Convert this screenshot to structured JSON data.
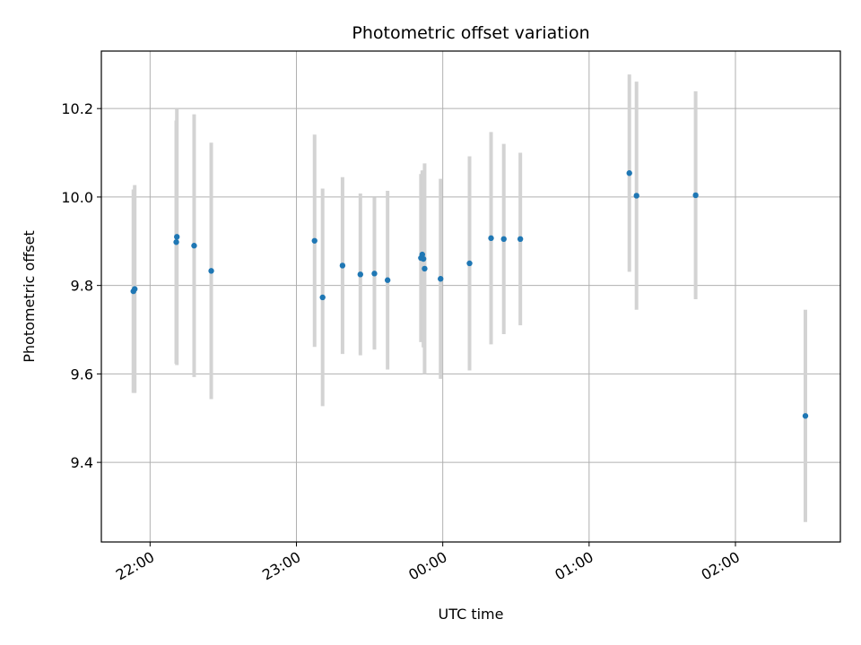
{
  "chart_data": {
    "type": "scatter",
    "title": "Photometric offset variation",
    "xlabel": "UTC time",
    "ylabel": "Photometric offset",
    "x_unit": "hours UTC (values past 24 are after midnight)",
    "xlim": [
      21.667,
      26.717
    ],
    "ylim": [
      9.22,
      10.33
    ],
    "xticks": [
      {
        "value": 22.0,
        "label": "22:00"
      },
      {
        "value": 23.0,
        "label": "23:00"
      },
      {
        "value": 24.0,
        "label": "00:00"
      },
      {
        "value": 25.0,
        "label": "01:00"
      },
      {
        "value": 26.0,
        "label": "02:00"
      }
    ],
    "yticks": [
      {
        "value": 9.4,
        "label": "9.4"
      },
      {
        "value": 9.6,
        "label": "9.6"
      },
      {
        "value": 9.8,
        "label": "9.8"
      },
      {
        "value": 10.0,
        "label": "10.0"
      },
      {
        "value": 10.2,
        "label": "10.2"
      }
    ],
    "grid": true,
    "marker_color": "#1f77b4",
    "errorbar_color": "#d3d3d3",
    "points": [
      {
        "x": 21.886,
        "y": 9.787,
        "err": 0.23
      },
      {
        "x": 21.895,
        "y": 9.792,
        "err": 0.235
      },
      {
        "x": 22.179,
        "y": 9.898,
        "err": 0.275
      },
      {
        "x": 22.183,
        "y": 9.91,
        "err": 0.29
      },
      {
        "x": 22.301,
        "y": 9.89,
        "err": 0.297
      },
      {
        "x": 22.418,
        "y": 9.833,
        "err": 0.29
      },
      {
        "x": 23.124,
        "y": 9.901,
        "err": 0.24
      },
      {
        "x": 23.179,
        "y": 9.773,
        "err": 0.246
      },
      {
        "x": 23.315,
        "y": 9.845,
        "err": 0.2
      },
      {
        "x": 23.437,
        "y": 9.825,
        "err": 0.183
      },
      {
        "x": 23.533,
        "y": 9.827,
        "err": 0.172
      },
      {
        "x": 23.623,
        "y": 9.812,
        "err": 0.202
      },
      {
        "x": 23.851,
        "y": 9.862,
        "err": 0.19
      },
      {
        "x": 23.86,
        "y": 9.87,
        "err": 0.19
      },
      {
        "x": 23.868,
        "y": 9.86,
        "err": 0.2
      },
      {
        "x": 23.876,
        "y": 9.838,
        "err": 0.238
      },
      {
        "x": 23.985,
        "y": 9.815,
        "err": 0.226
      },
      {
        "x": 24.183,
        "y": 9.85,
        "err": 0.242
      },
      {
        "x": 24.33,
        "y": 9.907,
        "err": 0.24
      },
      {
        "x": 24.417,
        "y": 9.905,
        "err": 0.215
      },
      {
        "x": 24.53,
        "y": 9.905,
        "err": 0.195
      },
      {
        "x": 25.275,
        "y": 10.054,
        "err": 0.223
      },
      {
        "x": 25.324,
        "y": 10.003,
        "err": 0.258
      },
      {
        "x": 25.728,
        "y": 10.004,
        "err": 0.235
      },
      {
        "x": 26.478,
        "y": 9.505,
        "err": 0.24
      }
    ]
  }
}
